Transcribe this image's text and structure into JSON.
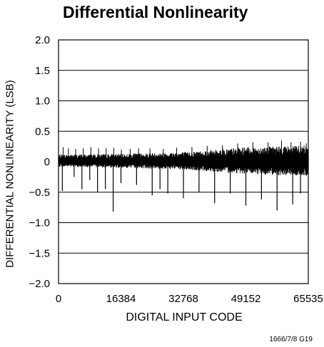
{
  "chart_data": {
    "type": "line",
    "title": "Differential Nonlinearity",
    "xlabel": "DIGITAL INPUT CODE",
    "ylabel": "DIFFERENTIAL NONLINEARITY (LSB)",
    "xlim": [
      0,
      65535
    ],
    "ylim": [
      -2.0,
      2.0
    ],
    "grid": "horizontal",
    "xticks": [
      0,
      16384,
      32768,
      49152,
      65535
    ],
    "xtick_labels": [
      "0",
      "16384",
      "32768",
      "49152",
      "65535"
    ],
    "yticks": [
      2.0,
      1.5,
      1.0,
      0.5,
      0,
      -0.5,
      -1.0,
      -1.5,
      -2.0
    ],
    "ytick_labels": [
      "2.0",
      "1.5",
      "1.0",
      "0.5",
      "0",
      "−0.5",
      "−1.0",
      "−1.5",
      "−2.0"
    ],
    "envelope": {
      "x": [
        0,
        16384,
        32768,
        49152,
        65535
      ],
      "upper": [
        0.12,
        0.13,
        0.16,
        0.24,
        0.27
      ],
      "lower": [
        -0.08,
        -0.1,
        -0.13,
        -0.2,
        -0.24
      ]
    },
    "upward_spikes": {
      "x": [
        1200,
        2600,
        4500,
        6500,
        8500,
        10500,
        12500,
        14500,
        16500,
        18800,
        21000,
        24000,
        27500,
        31000,
        35000,
        39000,
        43000,
        47000,
        51000,
        55000,
        58500,
        61000,
        63500,
        65000
      ],
      "y": [
        0.24,
        0.22,
        0.21,
        0.22,
        0.24,
        0.22,
        0.22,
        0.23,
        0.2,
        0.21,
        0.22,
        0.22,
        0.21,
        0.23,
        0.24,
        0.26,
        0.27,
        0.3,
        0.32,
        0.32,
        0.35,
        0.32,
        0.33,
        0.3
      ]
    },
    "downward_spikes": {
      "x": [
        1000,
        4096,
        6144,
        8192,
        10240,
        12288,
        14336,
        16384,
        20480,
        24576,
        26624,
        28672,
        32768,
        36864,
        40960,
        45056,
        49152,
        53248,
        57344,
        61440,
        63488
      ],
      "y": [
        -0.48,
        -0.25,
        -0.45,
        -0.3,
        -0.5,
        -0.45,
        -0.82,
        -0.35,
        -0.38,
        -0.55,
        -0.45,
        -0.52,
        -0.6,
        -0.5,
        -0.68,
        -0.52,
        -0.72,
        -0.62,
        -0.8,
        -0.7,
        -0.52
      ]
    }
  },
  "figure_id": "1666/7/8 G19",
  "colors": {
    "trace": "#000000",
    "grid": "#000000",
    "background": "#ffffff"
  }
}
